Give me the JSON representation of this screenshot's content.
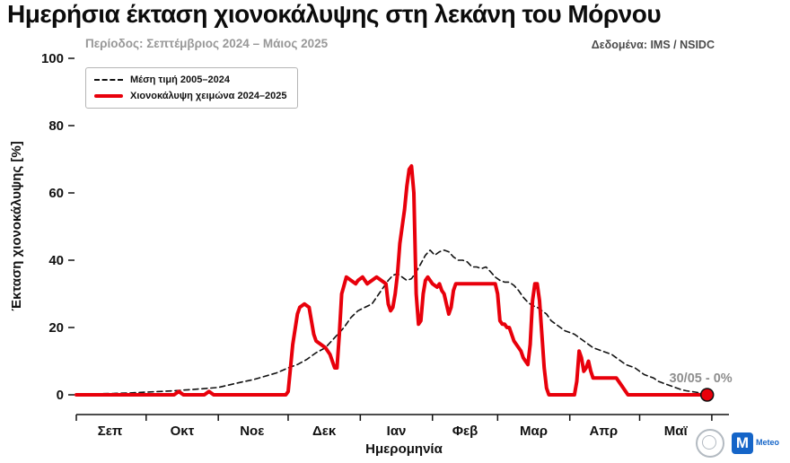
{
  "header": {
    "title": "Ημερήσια έκταση χιονοκάλυψης στη λεκάνη του Μόρνου",
    "subtitle": "Περίοδος: Σεπτέμβριος 2024 – Μάιος 2025",
    "source": "Δεδομένα: IMS / NSIDC"
  },
  "legend": {
    "mean_label": "Μέση τιμή 2005–2024",
    "current_label": "Χιονοκάλυψη χειμώνα 2024–2025"
  },
  "logos": {
    "meteo_initial": "M",
    "meteo_word": "Meteo"
  },
  "chart_data": {
    "type": "line",
    "title": "Ημερήσια έκταση χιονοκάλυψης στη λεκάνη του Μόρνου",
    "xlabel": "Ημερομηνία",
    "ylabel": "Έκταση χιονοκάλυψης [%]",
    "ylim": [
      0,
      100
    ],
    "yticks": [
      0,
      20,
      40,
      60,
      80,
      100
    ],
    "grid": false,
    "legend_position": "upper-left",
    "x_unit": "day_of_season (0 = 1 Sep 2024)",
    "month_labels": [
      "Σεπ",
      "Οκτ",
      "Νοε",
      "Δεκ",
      "Ιαν",
      "Φεβ",
      "Μαρ",
      "Απρ",
      "Μαϊ"
    ],
    "month_boundaries_days": [
      0,
      30,
      61,
      91,
      122,
      153,
      181,
      212,
      242,
      273
    ],
    "month_mid_days": [
      14.5,
      45.5,
      75.5,
      106.5,
      137.5,
      167,
      196.5,
      226.5,
      257.5
    ],
    "series": [
      {
        "name": "Μέση τιμή 2005–2024",
        "data_name": "mean-line",
        "style": "dashed",
        "color": "#111111",
        "width": 1.6,
        "points": [
          [
            0,
            0.3
          ],
          [
            8,
            0.3
          ],
          [
            16,
            0.4
          ],
          [
            24,
            0.6
          ],
          [
            30,
            0.8
          ],
          [
            36,
            1
          ],
          [
            42,
            1.2
          ],
          [
            48,
            1.5
          ],
          [
            54,
            1.8
          ],
          [
            61,
            2.2
          ],
          [
            66,
            3
          ],
          [
            71,
            3.8
          ],
          [
            76,
            4.5
          ],
          [
            81,
            5.5
          ],
          [
            86,
            6.5
          ],
          [
            91,
            8
          ],
          [
            95,
            9
          ],
          [
            99,
            10.5
          ],
          [
            103,
            12.5
          ],
          [
            107,
            14
          ],
          [
            111,
            17
          ],
          [
            115,
            20
          ],
          [
            118,
            23
          ],
          [
            121,
            25
          ],
          [
            124,
            26
          ],
          [
            127,
            27
          ],
          [
            130,
            30
          ],
          [
            132,
            32
          ],
          [
            134,
            34
          ],
          [
            136,
            35.5
          ],
          [
            138,
            36
          ],
          [
            140,
            35
          ],
          [
            142,
            34
          ],
          [
            144,
            34.5
          ],
          [
            146,
            36.5
          ],
          [
            148,
            39
          ],
          [
            150,
            41.5
          ],
          [
            152,
            43
          ],
          [
            154,
            41.5
          ],
          [
            156,
            42.5
          ],
          [
            158,
            43
          ],
          [
            160,
            42.5
          ],
          [
            162,
            41
          ],
          [
            164,
            40
          ],
          [
            166,
            40
          ],
          [
            168,
            39.5
          ],
          [
            170,
            38
          ],
          [
            172,
            38
          ],
          [
            174,
            37.5
          ],
          [
            176,
            38
          ],
          [
            178,
            36.5
          ],
          [
            180,
            35
          ],
          [
            182,
            34
          ],
          [
            184,
            33.5
          ],
          [
            186,
            33.5
          ],
          [
            188,
            32.5
          ],
          [
            190,
            31
          ],
          [
            192,
            29
          ],
          [
            194,
            27.5
          ],
          [
            196,
            26.5
          ],
          [
            198,
            26
          ],
          [
            200,
            25
          ],
          [
            202,
            24
          ],
          [
            204,
            22
          ],
          [
            206,
            21
          ],
          [
            208,
            20
          ],
          [
            210,
            19
          ],
          [
            212,
            18.5
          ],
          [
            214,
            18
          ],
          [
            216,
            17
          ],
          [
            218,
            16
          ],
          [
            220,
            15
          ],
          [
            222,
            14
          ],
          [
            224,
            13.5
          ],
          [
            226,
            13
          ],
          [
            228,
            12.5
          ],
          [
            230,
            12
          ],
          [
            232,
            11
          ],
          [
            234,
            10
          ],
          [
            236,
            9
          ],
          [
            238,
            8.5
          ],
          [
            240,
            8
          ],
          [
            242,
            7
          ],
          [
            244,
            6
          ],
          [
            246,
            5.5
          ],
          [
            248,
            5
          ],
          [
            250,
            4
          ],
          [
            252,
            3.5
          ],
          [
            254,
            3
          ],
          [
            256,
            2.5
          ],
          [
            258,
            2
          ],
          [
            260,
            1.5
          ],
          [
            262,
            1.2
          ],
          [
            264,
            1
          ],
          [
            266,
            0.8
          ],
          [
            268,
            0.5
          ],
          [
            271,
            0.3
          ]
        ]
      },
      {
        "name": "Χιονοκάλυψη χειμώνα 2024–2025",
        "data_name": "snow-line",
        "style": "solid",
        "color": "#e8000b",
        "width": 4,
        "points": [
          [
            0,
            0
          ],
          [
            15,
            0
          ],
          [
            30,
            0
          ],
          [
            42,
            0
          ],
          [
            44,
            1
          ],
          [
            46,
            0
          ],
          [
            55,
            0
          ],
          [
            57,
            1
          ],
          [
            59,
            0
          ],
          [
            70,
            0
          ],
          [
            85,
            0
          ],
          [
            90,
            0
          ],
          [
            91,
            1
          ],
          [
            93,
            15
          ],
          [
            95,
            24
          ],
          [
            96,
            26
          ],
          [
            98,
            27
          ],
          [
            100,
            26
          ],
          [
            102,
            18
          ],
          [
            103,
            16
          ],
          [
            105,
            15
          ],
          [
            107,
            14
          ],
          [
            109,
            12
          ],
          [
            110,
            10
          ],
          [
            111,
            8
          ],
          [
            112,
            8
          ],
          [
            113,
            18
          ],
          [
            114,
            30
          ],
          [
            116,
            35
          ],
          [
            118,
            34
          ],
          [
            120,
            33
          ],
          [
            121,
            34
          ],
          [
            123,
            35
          ],
          [
            125,
            33
          ],
          [
            127,
            34
          ],
          [
            129,
            35
          ],
          [
            131,
            34
          ],
          [
            133,
            33
          ],
          [
            134,
            27
          ],
          [
            135,
            25
          ],
          [
            136,
            26
          ],
          [
            137,
            30
          ],
          [
            138,
            36
          ],
          [
            139,
            45
          ],
          [
            140,
            50
          ],
          [
            141,
            55
          ],
          [
            142,
            62
          ],
          [
            143,
            67
          ],
          [
            144,
            68
          ],
          [
            145,
            60
          ],
          [
            146,
            30
          ],
          [
            147,
            21
          ],
          [
            148,
            22
          ],
          [
            149,
            30
          ],
          [
            150,
            34
          ],
          [
            151,
            35
          ],
          [
            152,
            34
          ],
          [
            153,
            33
          ],
          [
            155,
            32
          ],
          [
            156,
            33
          ],
          [
            157,
            31
          ],
          [
            158,
            30
          ],
          [
            159,
            27
          ],
          [
            160,
            24
          ],
          [
            161,
            26
          ],
          [
            162,
            31
          ],
          [
            163,
            33
          ],
          [
            166,
            33
          ],
          [
            170,
            33
          ],
          [
            174,
            33
          ],
          [
            178,
            33
          ],
          [
            180,
            33
          ],
          [
            181,
            30
          ],
          [
            182,
            22
          ],
          [
            183,
            21
          ],
          [
            184,
            21
          ],
          [
            185,
            20
          ],
          [
            186,
            20
          ],
          [
            187,
            18
          ],
          [
            188,
            16
          ],
          [
            189,
            15
          ],
          [
            190,
            14
          ],
          [
            191,
            13
          ],
          [
            192,
            11
          ],
          [
            193,
            10
          ],
          [
            194,
            9
          ],
          [
            195,
            15
          ],
          [
            196,
            28
          ],
          [
            197,
            33
          ],
          [
            198,
            33
          ],
          [
            199,
            28
          ],
          [
            200,
            18
          ],
          [
            201,
            8
          ],
          [
            202,
            2
          ],
          [
            203,
            0
          ],
          [
            206,
            0
          ],
          [
            210,
            0
          ],
          [
            214,
            0
          ],
          [
            215,
            4
          ],
          [
            216,
            13
          ],
          [
            217,
            11
          ],
          [
            218,
            7
          ],
          [
            219,
            8
          ],
          [
            220,
            10
          ],
          [
            221,
            7
          ],
          [
            222,
            5
          ],
          [
            226,
            5
          ],
          [
            230,
            5
          ],
          [
            232,
            5
          ],
          [
            234,
            3
          ],
          [
            236,
            1
          ],
          [
            237,
            0
          ],
          [
            245,
            0
          ],
          [
            255,
            0
          ],
          [
            265,
            0
          ],
          [
            271,
            0
          ]
        ]
      }
    ],
    "end_marker": {
      "day": 271,
      "value": 0,
      "label": "30/05 - 0%"
    }
  }
}
